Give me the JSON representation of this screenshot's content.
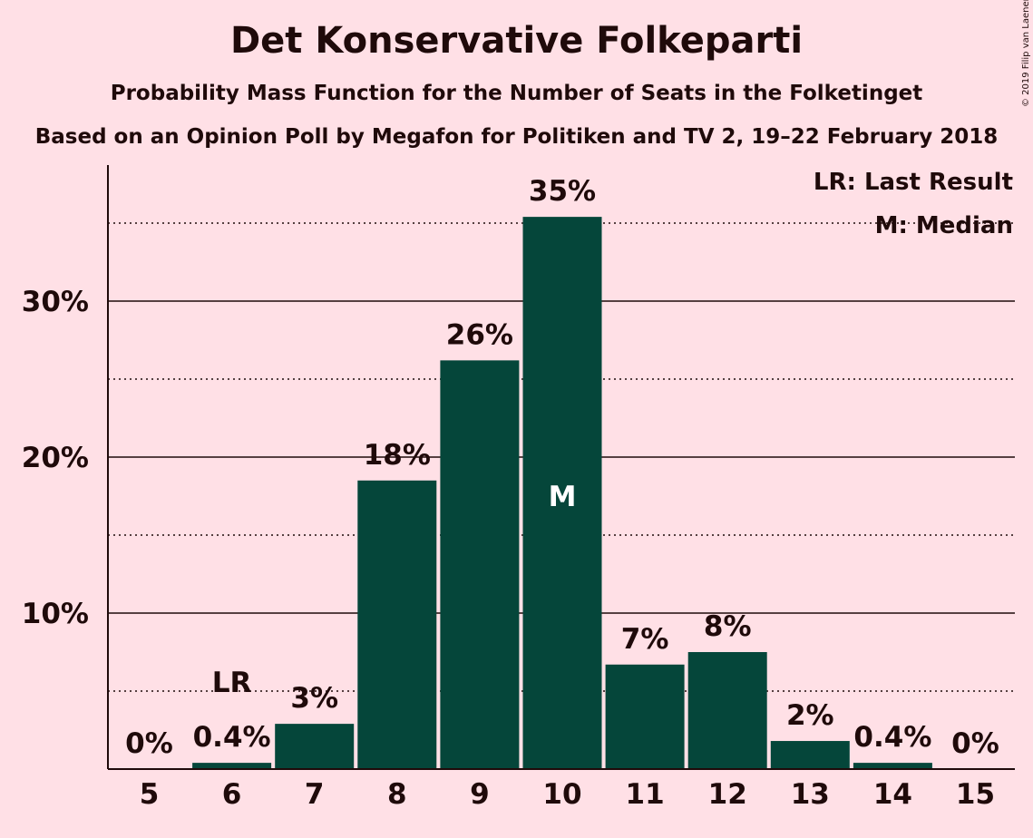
{
  "title": "Det Konservative Folkeparti",
  "subtitle": "Probability Mass Function for the Number of Seats in the Folketinget",
  "subtitle2": "Based on an Opinion Poll by Megafon for Politiken and TV 2, 19–22 February 2018",
  "copyright": "© 2019 Filip van Laenen",
  "colors": {
    "background": "#ffe0e6",
    "bar": "#05463a",
    "text": "#1f0a0a"
  },
  "chart_data": {
    "type": "bar",
    "categories": [
      "5",
      "6",
      "7",
      "8",
      "9",
      "10",
      "11",
      "12",
      "13",
      "14",
      "15"
    ],
    "values": [
      0,
      0.4,
      2.9,
      18.5,
      26.2,
      35.4,
      6.7,
      7.5,
      1.8,
      0.4,
      0
    ],
    "data_labels": [
      "0%",
      "0.4%",
      "3%",
      "18%",
      "26%",
      "35%",
      "7%",
      "8%",
      "2%",
      "0.4%",
      "0%"
    ],
    "y_ticks": [
      {
        "value": 10,
        "label": "10%"
      },
      {
        "value": 20,
        "label": "20%"
      },
      {
        "value": 30,
        "label": "30%"
      }
    ],
    "minor_gridlines": [
      5,
      15,
      25,
      35
    ],
    "ylim": [
      0,
      38.5
    ],
    "last_result": {
      "category": "6",
      "label": "LR"
    },
    "median": {
      "category": "10",
      "label": "M"
    },
    "legend": [
      "LR: Last Result",
      "M: Median"
    ],
    "legend_position": "top-right"
  }
}
